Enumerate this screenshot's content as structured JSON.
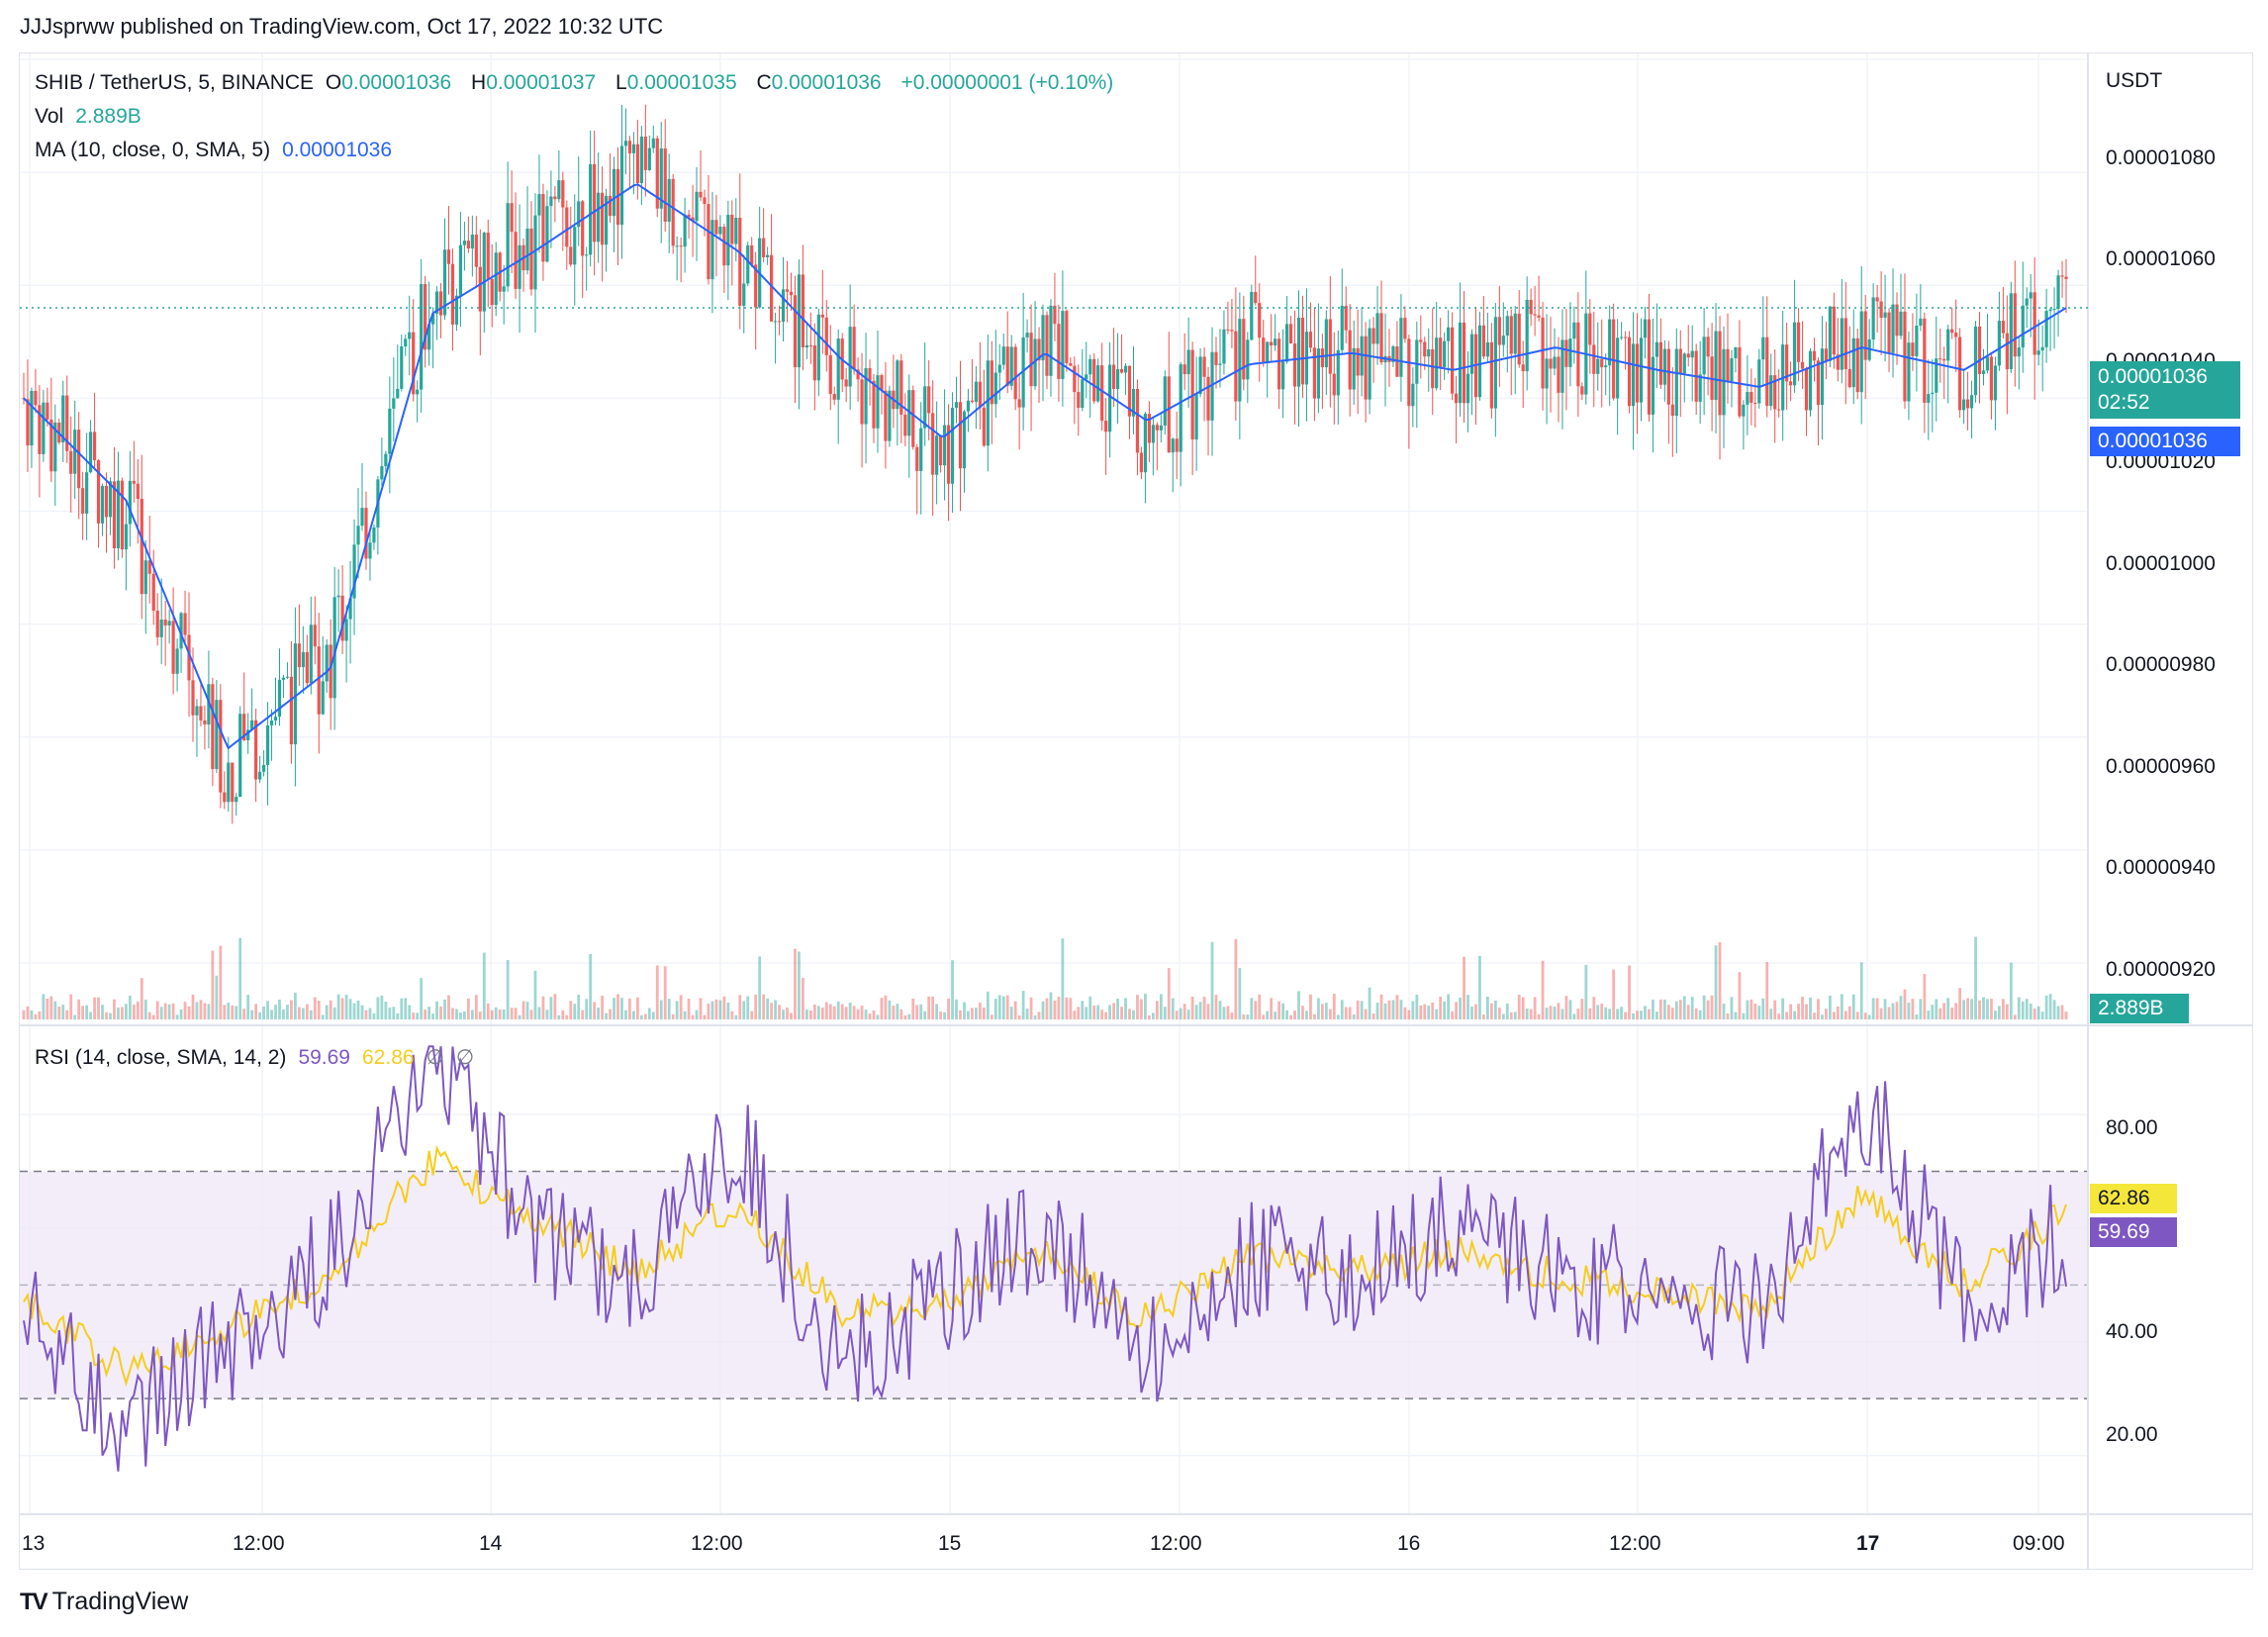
{
  "header": {
    "attribution": "JJJsprww published on TradingView.com, Oct 17, 2022 10:32 UTC"
  },
  "legend": {
    "symbol": "SHIB / TetherUS, 5, BINANCE",
    "o_label": "O",
    "o_value": "0.00001036",
    "h_label": "H",
    "h_value": "0.00001037",
    "l_label": "L",
    "l_value": "0.00001035",
    "c_label": "C",
    "c_value": "0.00001036",
    "change": "+0.00000001 (+0.10%)",
    "vol_label": "Vol",
    "vol_value": "2.889B",
    "ma_label": "MA (10, close, 0, SMA, 5)",
    "ma_value": "0.00001036",
    "rsi_label": "RSI (14, close, SMA, 14, 2)",
    "rsi_value": "59.69",
    "rsi_ma_value": "62.86",
    "rsi_na1": "∅",
    "rsi_na2": "∅"
  },
  "price_axis": {
    "unit": "USDT",
    "ticks": [
      "0.00001080",
      "0.00001060",
      "0.00001040",
      "0.00001020",
      "0.00001000",
      "0.00000980",
      "0.00000960",
      "0.00000940",
      "0.00000920"
    ]
  },
  "price_labels": {
    "last_price": "0.00001036",
    "countdown": "02:52",
    "ma_price": "0.00001036",
    "volume": "2.889B",
    "rsi_ma": "62.86",
    "rsi": "59.69"
  },
  "rsi_axis": {
    "ticks": [
      "80.00",
      "40.00",
      "20.00"
    ]
  },
  "time_axis": {
    "ticks": [
      "13",
      "12:00",
      "14",
      "12:00",
      "15",
      "12:00",
      "16",
      "12:00",
      "17",
      "09:00"
    ]
  },
  "footer": {
    "brand": "TradingView"
  },
  "colors": {
    "up": "#26a69a",
    "down": "#ef5350",
    "ma": "#2962ff",
    "rsi": "#7e57c2",
    "rsi_ma": "#f5cd1c",
    "band": "#ede7f6"
  },
  "chart_data": [
    {
      "type": "candlestick",
      "title": "SHIB / TetherUS, 5, BINANCE",
      "ylabel": "USDT",
      "ylim": [
        9.1e-06,
        1.08e-05
      ],
      "x": [
        "Oct 13 00:00",
        "Oct 13 06:00",
        "Oct 13 12:00",
        "Oct 13 15:00",
        "Oct 13 18:00",
        "Oct 14 00:00",
        "Oct 14 06:00",
        "Oct 14 12:00",
        "Oct 14 18:00",
        "Oct 15 00:00",
        "Oct 15 06:00",
        "Oct 15 12:00",
        "Oct 15 15:00",
        "Oct 15 18:00",
        "Oct 16 00:00",
        "Oct 16 06:00",
        "Oct 16 12:00",
        "Oct 16 18:00",
        "Oct 17 00:00",
        "Oct 17 06:00",
        "Oct 17 10:30"
      ],
      "series": [
        {
          "name": "close",
          "values": [
            1.02e-05,
            1e-05,
            9.55e-06,
            9.75e-06,
            1.04e-05,
            1.048e-05,
            1.06e-05,
            1.045e-05,
            1.025e-05,
            1.012e-05,
            1.03e-05,
            1.015e-05,
            1.03e-05,
            1.028e-05,
            1.025e-05,
            1.03e-05,
            1.025e-05,
            1.022e-05,
            1.03e-05,
            1.025e-05,
            1.036e-05
          ]
        },
        {
          "name": "MA (10, close, 0, SMA, 5)",
          "values": [
            1.02e-05,
            1.002e-05,
            9.58e-06,
            9.72e-06,
            1.035e-05,
            1.046e-05,
            1.058e-05,
            1.046e-05,
            1.027e-05,
            1.013e-05,
            1.028e-05,
            1.016e-05,
            1.026e-05,
            1.028e-05,
            1.025e-05,
            1.029e-05,
            1.025e-05,
            1.022e-05,
            1.029e-05,
            1.025e-05,
            1.036e-05
          ]
        }
      ]
    },
    {
      "type": "line",
      "title": "RSI (14, close, SMA, 14, 2)",
      "ylim": [
        10,
        95
      ],
      "bands": [
        30,
        50,
        70
      ],
      "series": [
        {
          "name": "RSI",
          "values": [
            45,
            25,
            40,
            55,
            90,
            60,
            50,
            75,
            35,
            48,
            60,
            38,
            55,
            50,
            60,
            52,
            48,
            45,
            83,
            48,
            59.69
          ]
        },
        {
          "name": "RSI MA",
          "values": [
            47,
            35,
            42,
            52,
            72,
            62,
            52,
            65,
            45,
            47,
            56,
            44,
            55,
            52,
            56,
            52,
            49,
            46,
            66,
            50,
            62.86
          ]
        }
      ]
    }
  ]
}
